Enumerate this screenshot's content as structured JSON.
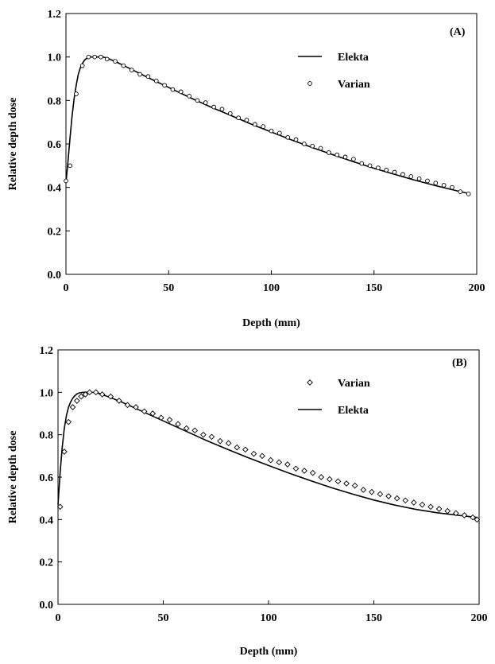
{
  "chart_data": [
    {
      "type": "line",
      "panel_label": "(A)",
      "xlabel": "Depth (mm)",
      "ylabel": "Relative depth dose",
      "xlim": [
        0,
        200
      ],
      "ylim": [
        0,
        1.2
      ],
      "xticks": [
        "0",
        "50",
        "100",
        "150",
        "200"
      ],
      "yticks": [
        "0.0",
        "0.2",
        "0.4",
        "0.6",
        "0.8",
        "1.0",
        "1.2"
      ],
      "legend_position": "top-right",
      "legend": [
        {
          "name": "Elekta",
          "style": "line"
        },
        {
          "name": "Varian",
          "style": "open-circle"
        }
      ],
      "series": [
        {
          "name": "Elekta",
          "style": "line",
          "x": [
            0,
            1,
            2,
            3,
            4,
            5,
            6,
            7,
            8,
            9,
            10,
            12,
            14,
            16,
            18,
            20,
            25,
            30,
            40,
            50,
            60,
            70,
            80,
            90,
            100,
            110,
            120,
            130,
            140,
            150,
            160,
            170,
            180,
            190,
            197
          ],
          "y": [
            0.42,
            0.52,
            0.63,
            0.73,
            0.81,
            0.87,
            0.92,
            0.95,
            0.97,
            0.985,
            0.993,
            1.0,
            1.0,
            1.0,
            1.0,
            0.995,
            0.975,
            0.952,
            0.905,
            0.86,
            0.815,
            0.772,
            0.732,
            0.692,
            0.655,
            0.618,
            0.583,
            0.55,
            0.518,
            0.488,
            0.46,
            0.433,
            0.408,
            0.385,
            0.37
          ]
        },
        {
          "name": "Varian",
          "style": "open-circle",
          "x": [
            0,
            2,
            5,
            8,
            11,
            14,
            17,
            20,
            24,
            28,
            32,
            36,
            40,
            44,
            48,
            52,
            56,
            60,
            64,
            68,
            72,
            76,
            80,
            84,
            88,
            92,
            96,
            100,
            104,
            108,
            112,
            116,
            120,
            124,
            128,
            132,
            136,
            140,
            144,
            148,
            152,
            156,
            160,
            164,
            168,
            172,
            176,
            180,
            184,
            188,
            192,
            196
          ],
          "y": [
            0.43,
            0.5,
            0.83,
            0.96,
            1.0,
            1.0,
            1.0,
            0.99,
            0.98,
            0.96,
            0.94,
            0.92,
            0.91,
            0.89,
            0.87,
            0.85,
            0.84,
            0.82,
            0.8,
            0.79,
            0.77,
            0.76,
            0.74,
            0.72,
            0.71,
            0.69,
            0.68,
            0.66,
            0.65,
            0.63,
            0.62,
            0.6,
            0.59,
            0.58,
            0.56,
            0.55,
            0.54,
            0.53,
            0.51,
            0.5,
            0.49,
            0.48,
            0.47,
            0.46,
            0.45,
            0.44,
            0.43,
            0.42,
            0.41,
            0.4,
            0.38,
            0.37
          ]
        }
      ]
    },
    {
      "type": "line",
      "panel_label": "(B)",
      "xlabel": "Depth (mm)",
      "ylabel": "Relative depth dose",
      "xlim": [
        0,
        200
      ],
      "ylim": [
        0,
        1.2
      ],
      "xticks": [
        "0",
        "50",
        "100",
        "150",
        "200"
      ],
      "yticks": [
        "0.0",
        "0.2",
        "0.4",
        "0.6",
        "0.8",
        "1.0",
        "1.2"
      ],
      "legend_position": "top-right",
      "legend": [
        {
          "name": "Varian",
          "style": "open-diamond"
        },
        {
          "name": "Elekta",
          "style": "line"
        }
      ],
      "series": [
        {
          "name": "Elekta",
          "style": "line",
          "x": [
            0,
            1,
            2,
            3,
            4,
            5,
            6,
            7,
            8,
            9,
            10,
            12,
            14,
            16,
            18,
            20,
            25,
            30,
            40,
            50,
            60,
            70,
            80,
            90,
            100,
            110,
            120,
            130,
            140,
            150,
            160,
            170,
            180,
            190,
            199
          ],
          "y": [
            0.47,
            0.62,
            0.74,
            0.83,
            0.89,
            0.93,
            0.955,
            0.972,
            0.984,
            0.992,
            0.997,
            1.0,
            1.0,
            1.0,
            0.998,
            0.993,
            0.975,
            0.955,
            0.91,
            0.865,
            0.82,
            0.775,
            0.733,
            0.693,
            0.655,
            0.618,
            0.583,
            0.55,
            0.52,
            0.492,
            0.468,
            0.448,
            0.432,
            0.42,
            0.41
          ]
        },
        {
          "name": "Varian",
          "style": "open-diamond",
          "x": [
            1,
            3,
            5,
            7,
            9,
            11,
            13,
            15,
            18,
            21,
            25,
            29,
            33,
            37,
            41,
            45,
            49,
            53,
            57,
            61,
            65,
            69,
            73,
            77,
            81,
            85,
            89,
            93,
            97,
            101,
            105,
            109,
            113,
            117,
            121,
            125,
            129,
            133,
            137,
            141,
            145,
            149,
            153,
            157,
            161,
            165,
            169,
            173,
            177,
            181,
            185,
            189,
            193,
            197,
            199
          ],
          "y": [
            0.46,
            0.72,
            0.86,
            0.93,
            0.96,
            0.98,
            0.99,
            1.0,
            1.0,
            0.99,
            0.98,
            0.96,
            0.94,
            0.93,
            0.91,
            0.9,
            0.88,
            0.87,
            0.85,
            0.83,
            0.82,
            0.8,
            0.79,
            0.77,
            0.76,
            0.74,
            0.73,
            0.71,
            0.7,
            0.68,
            0.67,
            0.66,
            0.64,
            0.63,
            0.62,
            0.6,
            0.59,
            0.58,
            0.57,
            0.56,
            0.54,
            0.53,
            0.52,
            0.51,
            0.5,
            0.49,
            0.48,
            0.47,
            0.46,
            0.45,
            0.44,
            0.43,
            0.42,
            0.41,
            0.4
          ]
        }
      ]
    }
  ]
}
